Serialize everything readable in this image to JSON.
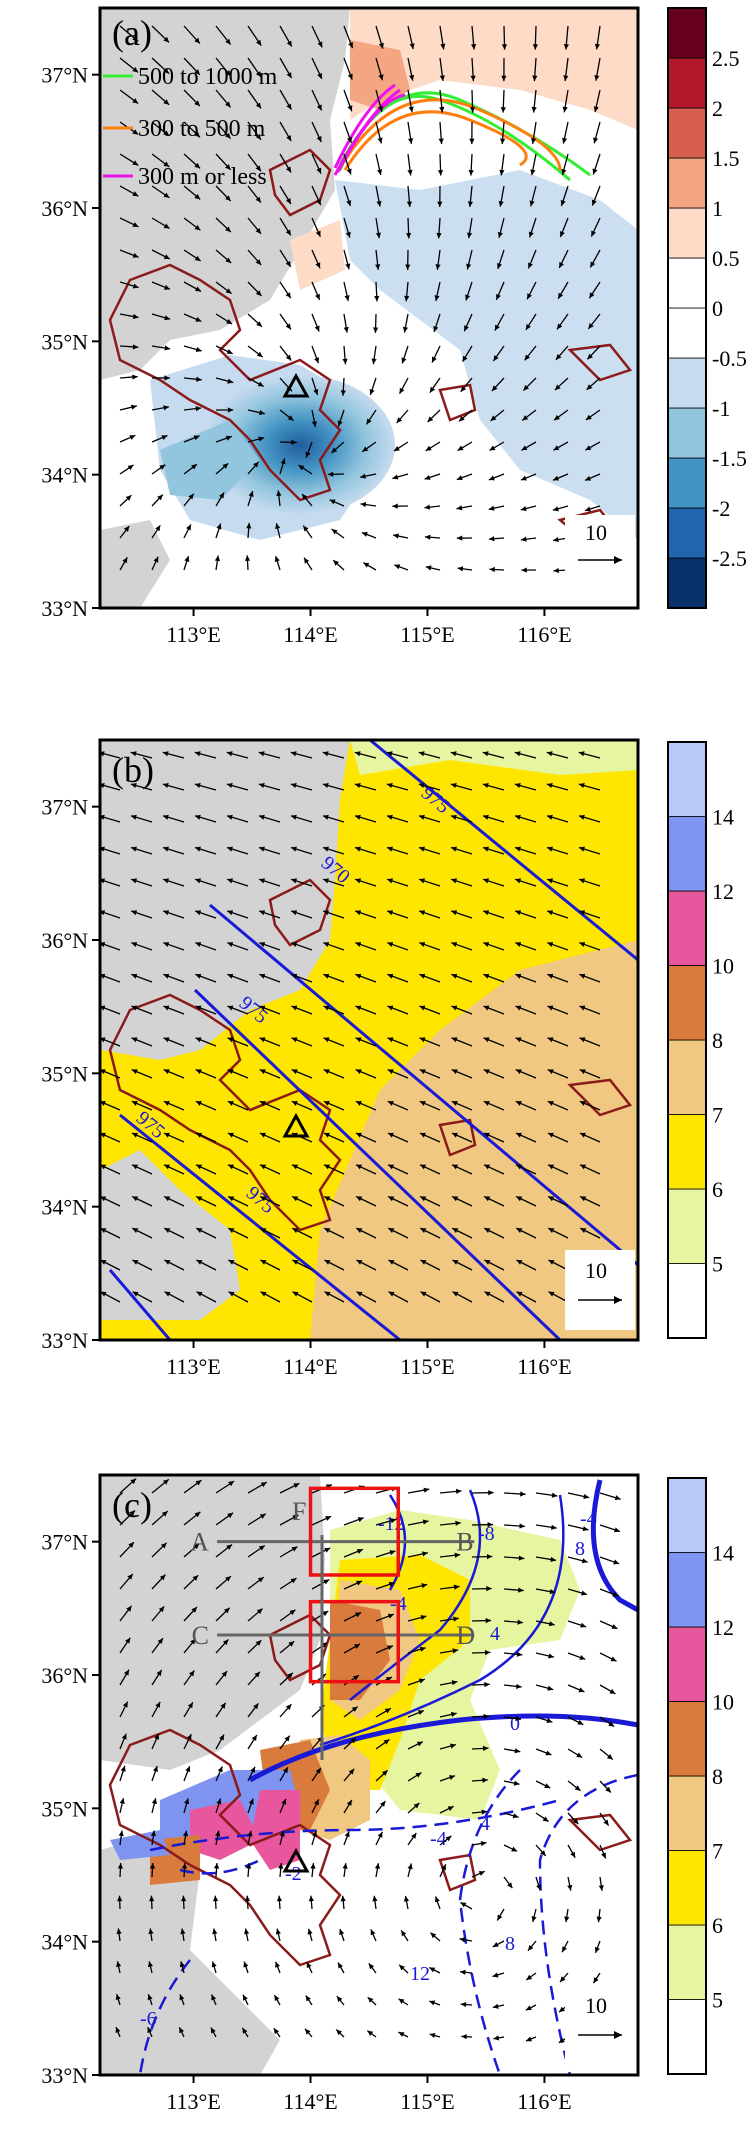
{
  "chart_data": [
    {
      "type": "heatmap",
      "panel_label": "(a)",
      "xlim": [
        112.2,
        116.8
      ],
      "ylim": [
        33.0,
        37.5
      ],
      "x_ticks": [
        "113°E",
        "114°E",
        "115°E",
        "116°E"
      ],
      "y_ticks": [
        "33°N",
        "34°N",
        "35°N",
        "36°N",
        "37°N"
      ],
      "colorbar": {
        "labels": [
          "-2.5",
          "-2",
          "-1.5",
          "-1",
          "-0.5",
          "0",
          "0.5",
          "1",
          "1.5",
          "2",
          "2.5"
        ],
        "colors": [
          "#08306b",
          "#2166ac",
          "#4393c3",
          "#92c5de",
          "#c6dbef",
          "#ffffff",
          "#ffffff",
          "#fddbc7",
          "#f4a582",
          "#d6604d",
          "#b2182b",
          "#67001f"
        ]
      },
      "legend": [
        {
          "label": "500 to 1000 m",
          "color": "#33ee33"
        },
        {
          "label": "300 to 500 m",
          "color": "#ff7f0e"
        },
        {
          "label": "300 m or less",
          "color": "#ee11ee"
        }
      ],
      "station": {
        "lon": 113.65,
        "lat": 34.72
      },
      "reference_vector": "10"
    },
    {
      "type": "heatmap",
      "panel_label": "(b)",
      "xlim": [
        112.2,
        116.8
      ],
      "ylim": [
        33.0,
        37.5
      ],
      "x_ticks": [
        "113°E",
        "114°E",
        "115°E",
        "116°E"
      ],
      "y_ticks": [
        "33°N",
        "34°N",
        "35°N",
        "36°N",
        "37°N"
      ],
      "colorbar": {
        "labels": [
          "5",
          "6",
          "7",
          "8",
          "10",
          "12",
          "14"
        ],
        "colors": [
          "#ffffff",
          "#e6f5a0",
          "#ffe600",
          "#f0c882",
          "#d97b3c",
          "#e8579e",
          "#7f94f0",
          "#b8c8f8"
        ]
      },
      "contour_labels": [
        "975",
        "970",
        "975",
        "975",
        "975"
      ],
      "station": {
        "lon": 113.65,
        "lat": 34.72
      },
      "reference_vector": "10"
    },
    {
      "type": "heatmap",
      "panel_label": "(c)",
      "xlim": [
        112.2,
        116.8
      ],
      "ylim": [
        33.0,
        37.5
      ],
      "x_ticks": [
        "113°E",
        "114°E",
        "115°E",
        "116°E"
      ],
      "y_ticks": [
        "33°N",
        "34°N",
        "35°N",
        "36°N",
        "37°N"
      ],
      "colorbar": {
        "labels": [
          "5",
          "6",
          "7",
          "8",
          "10",
          "12",
          "14"
        ],
        "colors": [
          "#ffffff",
          "#e6f5a0",
          "#ffe600",
          "#f0c882",
          "#d97b3c",
          "#e8579e",
          "#7f94f0",
          "#b8c8f8"
        ]
      },
      "contour_labels": [
        "-12",
        "-8",
        "-4",
        "-4",
        "0",
        "4",
        "8",
        "-4",
        "4",
        "-2",
        "-6",
        "8",
        "12"
      ],
      "cross_sections": [
        {
          "start": "A",
          "end": "B",
          "lat": 37.0,
          "lon_start": 113.2,
          "lon_end": 115.4
        },
        {
          "start": "C",
          "end": "D",
          "lat": 36.3,
          "lon_start": 113.2,
          "lon_end": 115.4
        }
      ],
      "box_labels": [
        "F"
      ],
      "boxes": [
        {
          "lon": [
            114.0,
            114.75
          ],
          "lat": [
            36.75,
            37.4
          ]
        },
        {
          "lon": [
            114.0,
            114.75
          ],
          "lat": [
            35.95,
            36.55
          ]
        }
      ],
      "station": {
        "lon": 113.65,
        "lat": 34.72
      },
      "reference_vector": "10"
    }
  ]
}
